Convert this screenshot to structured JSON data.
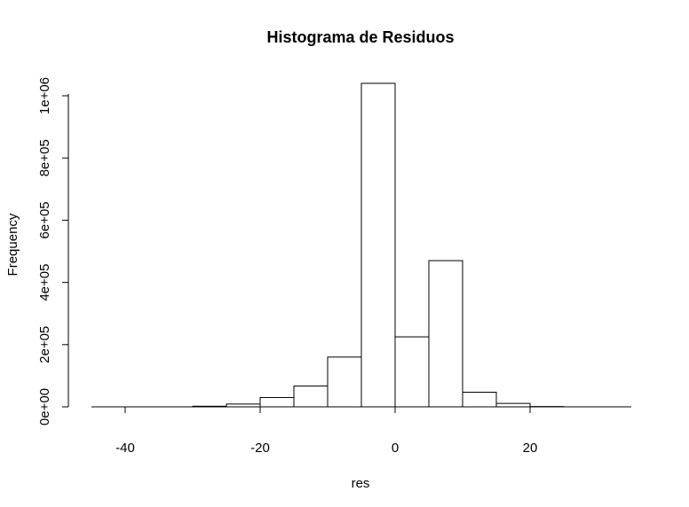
{
  "chart_data": {
    "type": "bar",
    "title": "Histograma de Residuos",
    "xlabel": "res",
    "ylabel": "Frequency",
    "xlim": [
      -45,
      35
    ],
    "ylim": [
      0,
      1040000
    ],
    "x_ticks": [
      -40,
      -20,
      0,
      20
    ],
    "x_tick_labels": [
      "-40",
      "-20",
      "0",
      "20"
    ],
    "y_ticks": [
      0,
      200000,
      400000,
      600000,
      800000,
      1000000
    ],
    "y_tick_labels": [
      "0e+00",
      "2e+05",
      "4e+05",
      "6e+05",
      "8e+05",
      "1e+06"
    ],
    "bin_edges": [
      -45,
      -40,
      -35,
      -30,
      -25,
      -20,
      -15,
      -10,
      -5,
      0,
      5,
      10,
      15,
      20,
      25,
      30,
      35
    ],
    "counts": [
      0,
      0,
      0,
      2000,
      9000,
      30000,
      67000,
      160000,
      1040000,
      225000,
      470000,
      47000,
      11000,
      1000,
      0,
      0
    ],
    "grid": false,
    "legend": "none"
  }
}
